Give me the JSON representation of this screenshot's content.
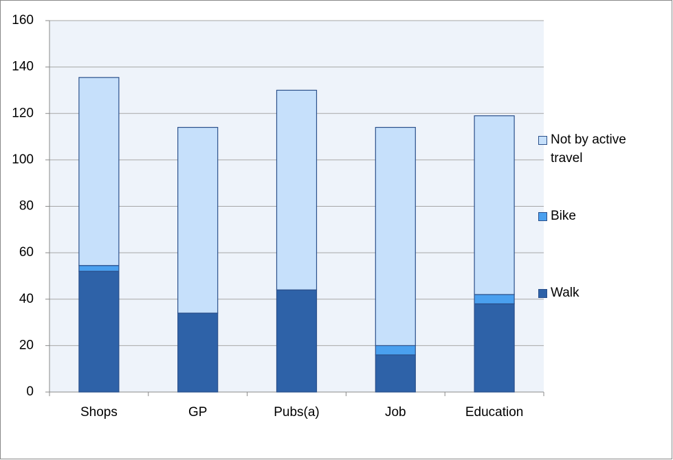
{
  "chart_data": {
    "type": "stacked_bar",
    "categories": [
      "Shops",
      "GP",
      "Pubs(a)",
      "Job",
      "Education"
    ],
    "series": [
      {
        "name": "Walk",
        "color": "#2e62a8",
        "values": [
          52,
          34,
          44,
          16,
          38
        ]
      },
      {
        "name": "Bike",
        "color": "#4aa0ef",
        "values": [
          2.5,
          0,
          0,
          4,
          4
        ]
      },
      {
        "name": "Not by active travel",
        "color": "#c6e0fb",
        "values": [
          81,
          80,
          86,
          94,
          77
        ]
      }
    ],
    "ylim": [
      0,
      160
    ],
    "yticks": [
      0,
      20,
      40,
      60,
      80,
      100,
      120,
      140,
      160
    ],
    "grid": true
  }
}
